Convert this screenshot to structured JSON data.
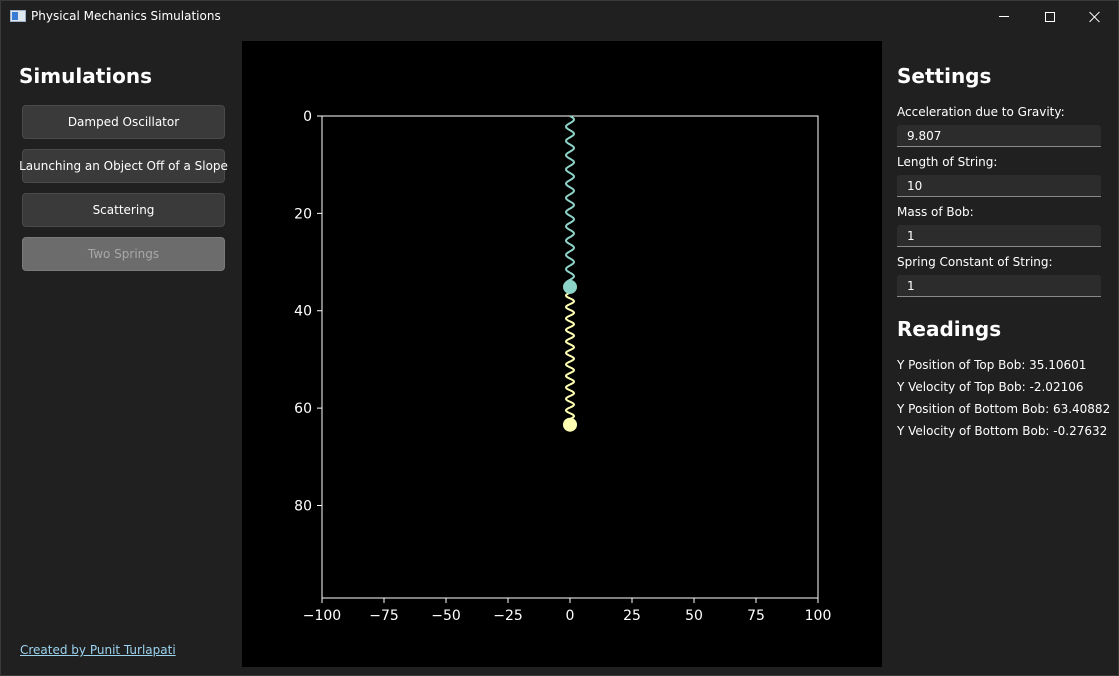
{
  "window": {
    "title": "Physical Mechanics Simulations",
    "icon": "app-window-icon"
  },
  "simulations": {
    "title": "Simulations",
    "buttons": [
      {
        "label": "Damped Oscillator",
        "enabled": true
      },
      {
        "label": "Launching an Object Off of a Slope",
        "enabled": true
      },
      {
        "label": "Scattering",
        "enabled": true
      },
      {
        "label": "Two Springs",
        "enabled": false
      }
    ],
    "credit": "Created by Punit Turlapati"
  },
  "settings": {
    "title": "Settings",
    "fields": [
      {
        "label": "Acceleration due to Gravity:",
        "value": "9.807"
      },
      {
        "label": "Length of String:",
        "value": "10"
      },
      {
        "label": "Mass of Bob:",
        "value": "1"
      },
      {
        "label": "Spring Constant of String:",
        "value": "1"
      }
    ]
  },
  "readings": {
    "title": "Readings",
    "items": [
      "Y Position of Top Bob: 35.10601",
      "Y Velocity of Top Bob: -2.02106",
      "Y Position of Bottom Bob: 63.40882",
      "Y Velocity of Bottom Bob: -0.27632"
    ]
  },
  "colors": {
    "background": "#202020",
    "plot_background": "#000000",
    "top_spring": "#8dd3c7",
    "bottom_spring": "#ffffb3",
    "link": "#9cd3ef",
    "axes": "#ffffff"
  },
  "chart_data": {
    "type": "scatter",
    "xlim": [
      -100,
      100
    ],
    "ylim": [
      0,
      99
    ],
    "y_inverted": true,
    "x_ticks": [
      -100,
      -75,
      -50,
      -25,
      0,
      25,
      50,
      75,
      100
    ],
    "x_tick_labels": [
      "−100",
      "−75",
      "−50",
      "−25",
      "0",
      "25",
      "50",
      "75",
      "100"
    ],
    "y_ticks": [
      0,
      20,
      40,
      60,
      80
    ],
    "y_tick_labels": [
      "0",
      "20",
      "40",
      "60",
      "80"
    ],
    "series": [
      {
        "x": [
          0
        ],
        "y": [
          35.10601
        ],
        "color": "#8dd3c7"
      },
      {
        "x": [
          0
        ],
        "y": [
          63.40882
        ],
        "color": "#ffffb3"
      }
    ],
    "springs": [
      {
        "x": 0,
        "y_start": 0,
        "y_end": 35.10601,
        "color": "#8dd3c7",
        "coils": 12
      },
      {
        "x": 0,
        "y_start": 35.10601,
        "y_end": 63.40882,
        "color": "#ffffb3",
        "coils": 12
      }
    ],
    "grid": false,
    "title": "",
    "xlabel": "",
    "ylabel": ""
  }
}
